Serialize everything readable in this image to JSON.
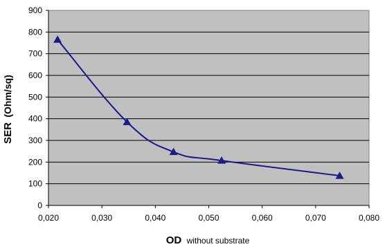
{
  "chart_data": {
    "type": "line",
    "xlabel_main": "OD",
    "xlabel_sub": "without substrate",
    "ylabel_main": "SER",
    "ylabel_sub": "(Ohm/sq)",
    "xlim": [
      0.02,
      0.08
    ],
    "ylim": [
      0,
      900
    ],
    "x_ticks": [
      "0,020",
      "0,030",
      "0,040",
      "0,050",
      "0,060",
      "0,070",
      "0,080"
    ],
    "y_ticks": [
      "0",
      "100",
      "200",
      "300",
      "400",
      "500",
      "600",
      "700",
      "800",
      "900"
    ],
    "grid": "horizontal",
    "series": [
      {
        "x": [
          0.0217,
          0.0347,
          0.0434,
          0.0524,
          0.0745
        ],
        "y": [
          765,
          385,
          247,
          207,
          137
        ]
      }
    ],
    "colors": {
      "plot_bg": "#c0c0c0",
      "series": "#1a1a8c",
      "grid": "#000000"
    }
  }
}
